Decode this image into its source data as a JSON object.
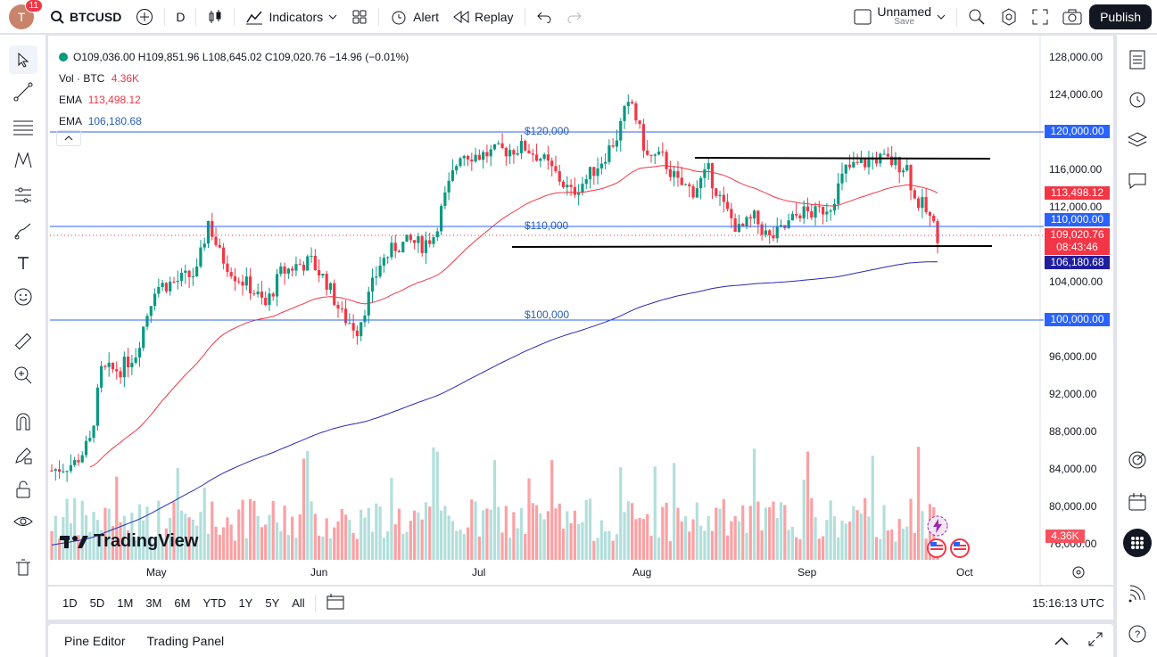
{
  "topbar": {
    "avatar_letter": "T",
    "notification_count": "11",
    "symbol": "BTCUSD",
    "interval": "D",
    "indicators_label": "Indicators",
    "alert_label": "Alert",
    "replay_label": "Replay",
    "layout_name": "Unnamed",
    "layout_status": "Save",
    "publish_label": "Publish"
  },
  "legend": {
    "ohlc": "O109,036.00  H109,851.96  L108,645.02  C109,020.76  −14.96  (−0.01%)",
    "vol_label": "Vol · BTC",
    "vol_value": "4.36K",
    "ema1_label": "EMA",
    "ema1_value": "113,498.12",
    "ema2_label": "EMA",
    "ema2_value": "106,180.68"
  },
  "annotations": {
    "level_120": "$120,000",
    "level_110": "$110,000",
    "level_100": "$100,000"
  },
  "price_axis": [
    "128,000.00",
    "124,000.00",
    "116,000.00",
    "112,000.00",
    "104,000.00",
    "96,000.00",
    "92,000.00",
    "88,000.00",
    "84,000.00",
    "80,000.00",
    "76,000.00"
  ],
  "price_labels": {
    "level_120": "120,000.00",
    "ema_fast": "113,498.12",
    "level_110": "110,000.00",
    "last_price": "109,020.76",
    "countdown": "08:43:46",
    "ema_slow": "106,180.68",
    "level_100": "100,000.00",
    "volume": "4.36K"
  },
  "time_axis": [
    "May",
    "Jun",
    "Jul",
    "Aug",
    "Sep",
    "Oct"
  ],
  "watermark": "TradingView",
  "bottom_bar": {
    "ranges": [
      "1D",
      "5D",
      "1M",
      "3M",
      "6M",
      "YTD",
      "1Y",
      "5Y",
      "All"
    ],
    "clock": "15:16:13 UTC"
  },
  "panels": {
    "pine_editor": "Pine Editor",
    "trading_panel": "Trading Panel"
  },
  "colors": {
    "up": "#089981",
    "down": "#f23645",
    "ema_fast": "#f23645",
    "ema_slow": "#2a2ab0",
    "level_line": "#2962ff",
    "level_label": "#2a5fb3",
    "volume_up": "#b2dfdb",
    "volume_down": "#faa1a4"
  },
  "chart_data": {
    "type": "candlestick",
    "symbol": "BTCUSD",
    "interval": "D",
    "ylim": [
      74000,
      130000
    ],
    "horizontal_levels": [
      120000,
      110000,
      100000
    ],
    "support_line": 108200,
    "resistance_line": 117200,
    "ema_fast_last": 113498.12,
    "ema_slow_last": 106180.68,
    "last_close": 109020.76
  }
}
